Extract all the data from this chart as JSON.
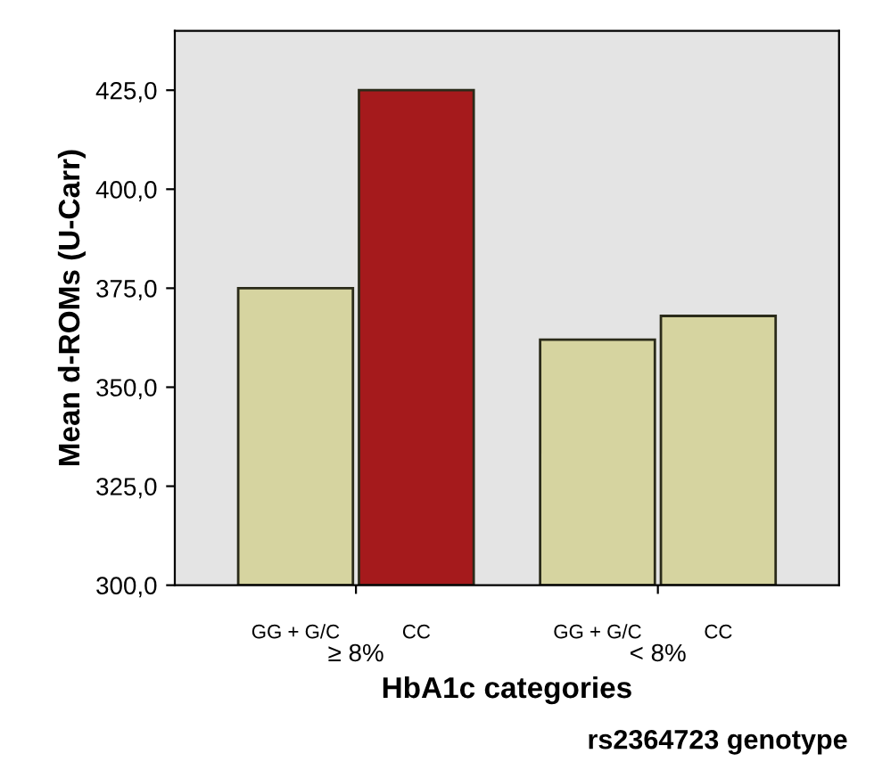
{
  "chart_data": {
    "type": "bar",
    "xlabel": "HbA1c categories",
    "ylabel": "Mean d-ROMs (U-Carr)",
    "categories": [
      "≥ 8%",
      "< 8%"
    ],
    "series": [
      {
        "name": "GG + G/C",
        "colors": [
          "#d6d4a0",
          "#d6d4a0"
        ],
        "values": [
          375,
          362
        ]
      },
      {
        "name": "CC",
        "colors": [
          "#a51a1c",
          "#d6d4a0"
        ],
        "values": [
          425,
          368
        ]
      }
    ],
    "annotations": [
      "rs2364723 genotype"
    ],
    "ylim": [
      300,
      440
    ],
    "yticks": [
      {
        "value": 300,
        "label": "300,0"
      },
      {
        "value": 325,
        "label": "325,0"
      },
      {
        "value": 350,
        "label": "350,0"
      },
      {
        "value": 375,
        "label": "375,0"
      },
      {
        "value": 400,
        "label": "400,0"
      },
      {
        "value": 425,
        "label": "425,0"
      }
    ],
    "grid": false
  }
}
